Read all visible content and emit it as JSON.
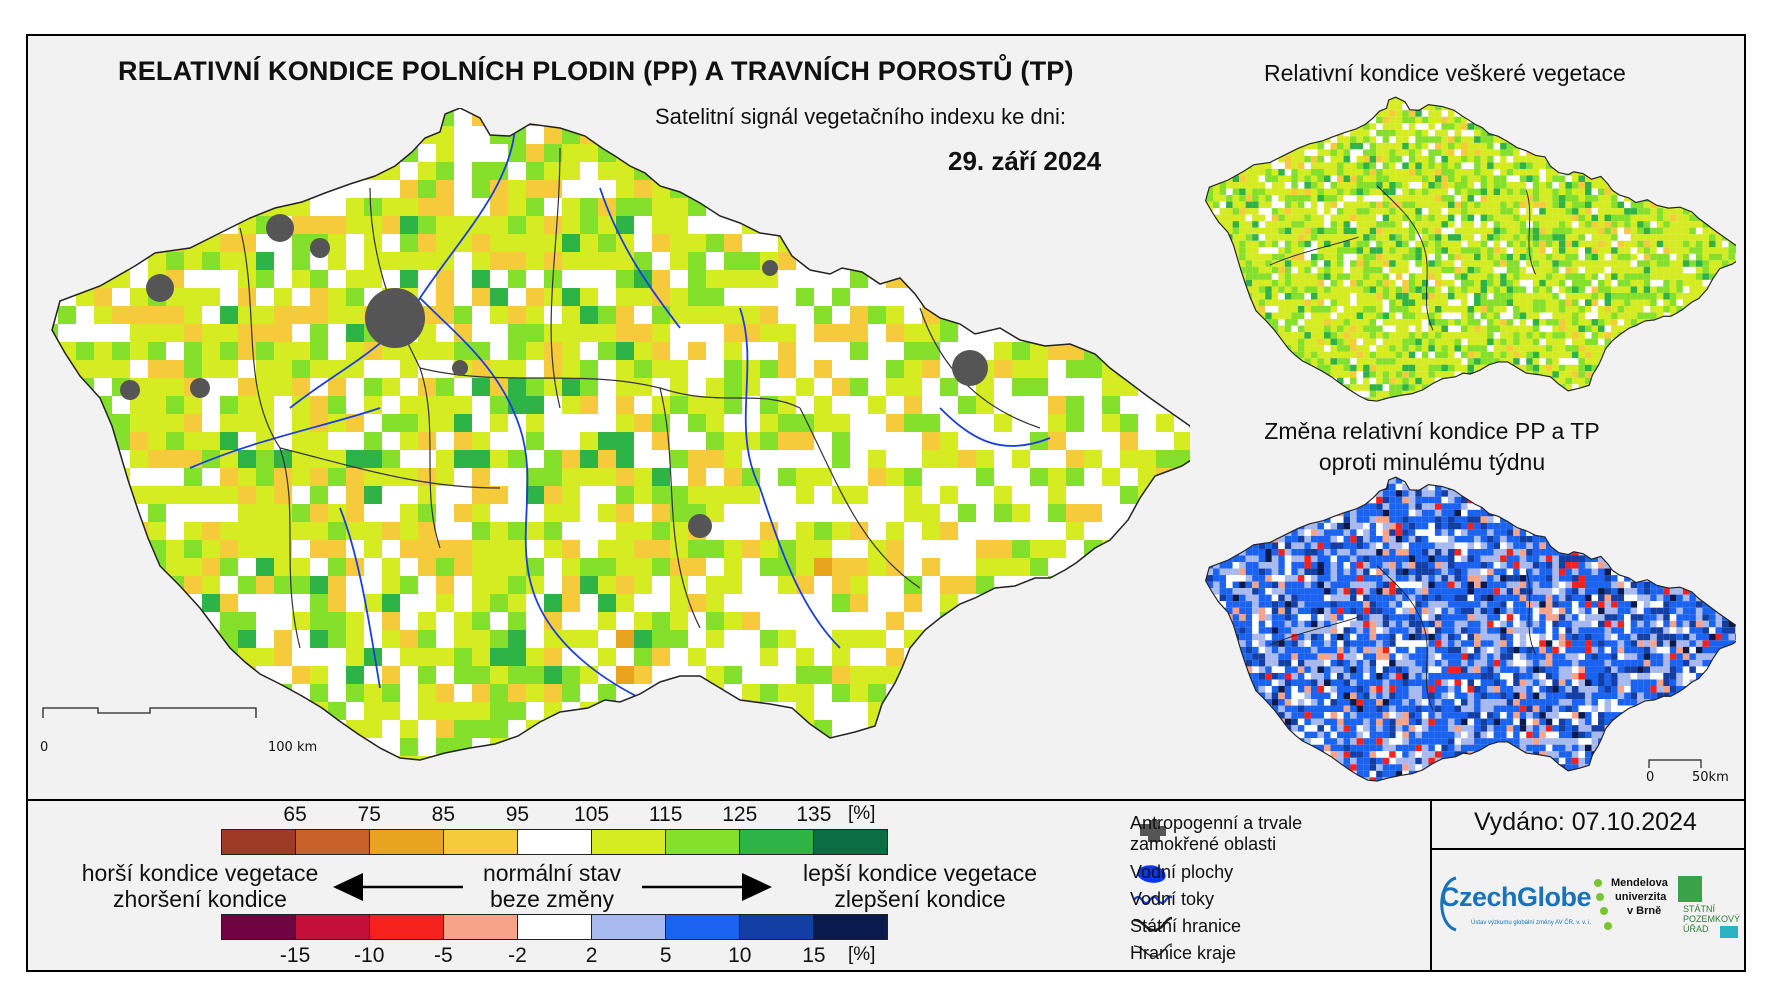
{
  "title": "RELATIVNÍ KONDICE POLNÍCH PLODIN (PP) A TRAVNÍCH POROSTŮ (TP)",
  "subtitle": "Satelitní signál vegetačního indexu ke dni:",
  "date": "29. září 2024",
  "inset_titles": {
    "all_vegetation": "Relativní kondice veškeré vegetace",
    "change_line1": "Změna relativní kondice PP a TP",
    "change_line2": "oproti minulému týdnu"
  },
  "scalebars": {
    "main": {
      "start": "0",
      "end": "100 km"
    },
    "inset": {
      "start": "0",
      "end": "50km"
    }
  },
  "legend": {
    "condition_ticks": [
      "65",
      "75",
      "85",
      "95",
      "105",
      "115",
      "125",
      "135"
    ],
    "condition_unit": "[%]",
    "condition_colors": [
      "#9e3b26",
      "#c8622a",
      "#e8a31f",
      "#f6cb3b",
      "#ffffff",
      "#d6ec22",
      "#84e02a",
      "#2eb347",
      "#0a6e45"
    ],
    "change_ticks": [
      "-15",
      "-10",
      "-5",
      "-2",
      "2",
      "5",
      "10",
      "15"
    ],
    "change_unit": "[%]",
    "change_colors": [
      "#6e0542",
      "#c2103a",
      "#f5211d",
      "#f7a38a",
      "#ffffff",
      "#a8b9ef",
      "#1a62f0",
      "#133ea4",
      "#0a1a4d"
    ],
    "worse_line1": "horší kondice vegetace",
    "worse_line2": "zhoršení kondice",
    "normal_line1": "normální stav",
    "normal_line2": "beze změny",
    "better_line1": "lepší kondice vegetace",
    "better_line2": "zlepšení kondice"
  },
  "map_legend": {
    "anthropogenic_line1": "Antropogenní a trvale",
    "anthropogenic_line2": "zamokřené oblasti",
    "water_bodies": "Vodní plochy",
    "water_streams": "Vodní toky",
    "state_border": "Státní hranice",
    "region_border": "Hranice kraje"
  },
  "issued": "Vydáno: 07.10.2024",
  "logos": {
    "czechglobe": "CzechGlobe",
    "czechglobe_sub": "Ústav výzkumu globální změny AV ČR, v. v. i.",
    "mendel_line1": "Mendelova",
    "mendel_line2": "univerzita",
    "mendel_line3": "v Brně",
    "spu_line1": "STÁTNÍ",
    "spu_line2": "POZEMKOVÝ",
    "spu_line3": "ÚŘAD"
  },
  "colors": {
    "stream": "#1a3fe0",
    "anthropogenic": "#555555",
    "border": "#222222"
  }
}
